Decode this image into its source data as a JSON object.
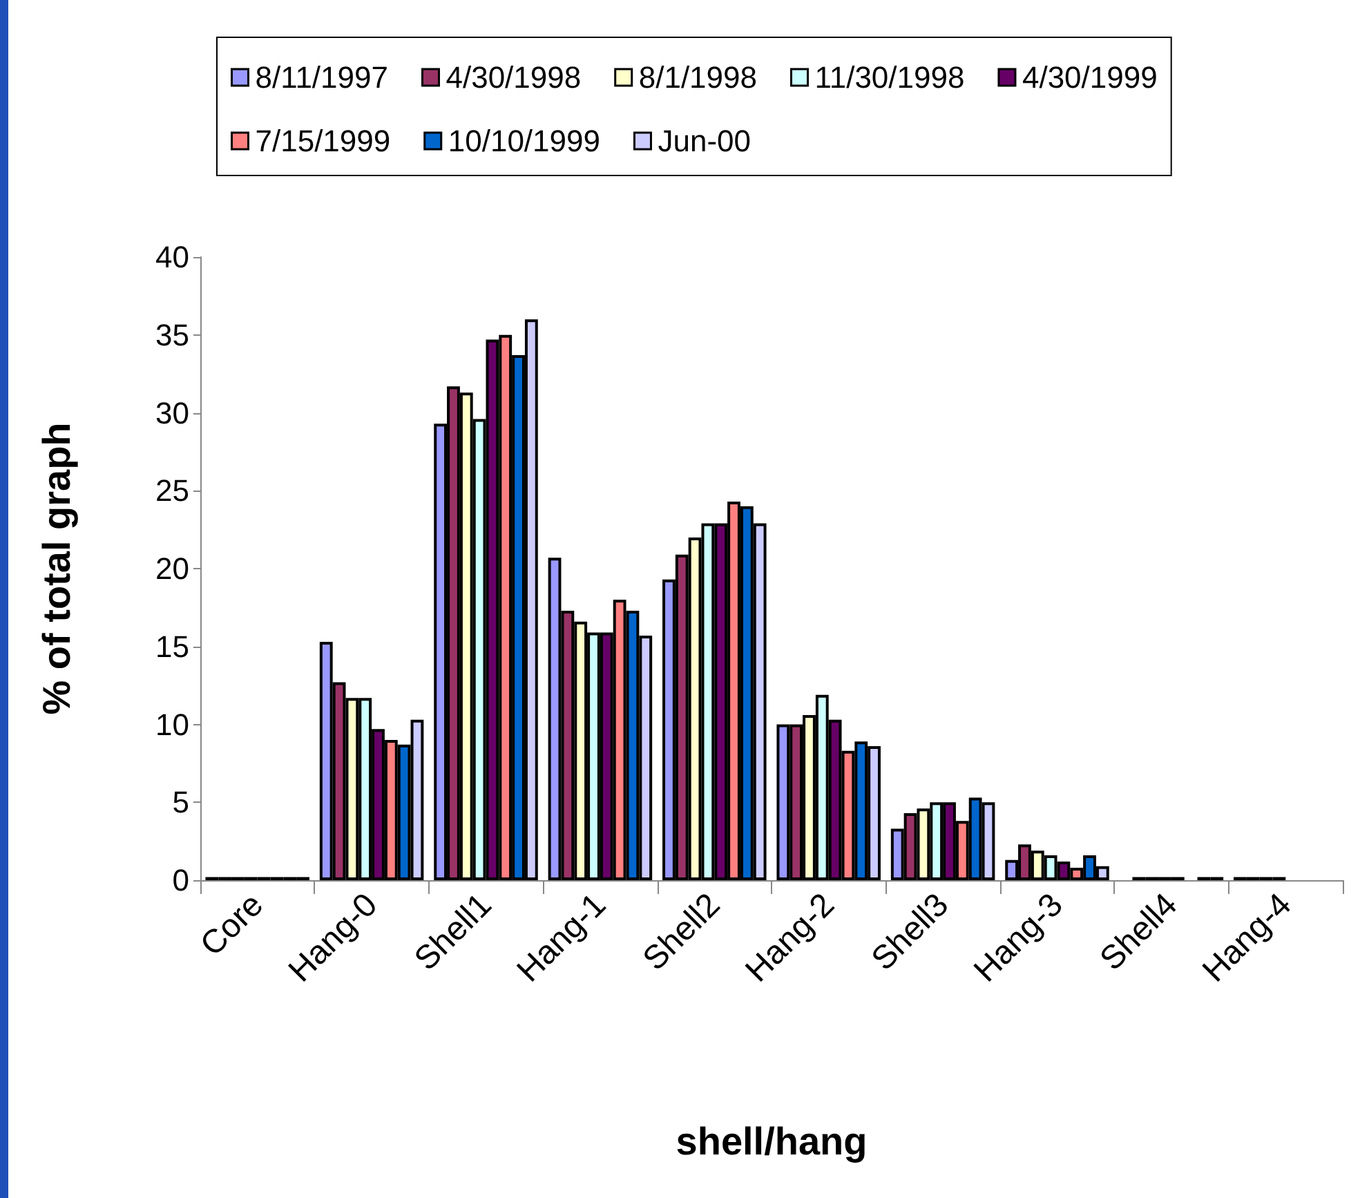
{
  "chart_data": {
    "type": "bar",
    "xlabel": "shell/hang",
    "ylabel": "% of total graph",
    "categories": [
      "Core",
      "Hang-0",
      "Shell1",
      "Hang-1",
      "Shell2",
      "Hang-2",
      "Shell3",
      "Hang-3",
      "Shell4",
      "Hang-4"
    ],
    "series": [
      {
        "name": "8/11/1997",
        "color": "#9999ff",
        "values": [
          0.2,
          15.3,
          29.3,
          20.7,
          19.3,
          10.0,
          3.3,
          1.3,
          null,
          0.2
        ]
      },
      {
        "name": "4/30/1998",
        "color": "#993366",
        "values": [
          0.2,
          12.7,
          31.7,
          17.3,
          20.9,
          10.0,
          4.3,
          2.3,
          0.2,
          0.2
        ]
      },
      {
        "name": "8/1/1998",
        "color": "#ffffcc",
        "values": [
          0.2,
          11.7,
          31.3,
          16.6,
          22.0,
          10.6,
          4.6,
          1.9,
          0.2,
          0.2
        ]
      },
      {
        "name": "11/30/1998",
        "color": "#ccffff",
        "values": [
          0.2,
          11.7,
          29.6,
          15.9,
          22.9,
          11.9,
          5.0,
          1.6,
          0.2,
          0.2
        ]
      },
      {
        "name": "4/30/1999",
        "color": "#660066",
        "values": [
          0.2,
          9.7,
          34.7,
          15.9,
          22.9,
          10.3,
          5.0,
          1.2,
          0.2,
          null
        ]
      },
      {
        "name": "7/15/1999",
        "color": "#ff8080",
        "values": [
          0.2,
          9.0,
          35.0,
          18.0,
          24.3,
          8.3,
          3.8,
          0.8,
          null,
          null
        ]
      },
      {
        "name": "10/10/1999",
        "color": "#0066cc",
        "values": [
          0.2,
          8.7,
          33.7,
          17.3,
          24.0,
          8.9,
          5.3,
          1.6,
          0.2,
          null
        ]
      },
      {
        "name": "Jun-00",
        "color": "#ccccff",
        "values": [
          0.2,
          10.3,
          36.0,
          15.7,
          22.9,
          8.6,
          5.0,
          0.9,
          0.2,
          null
        ]
      }
    ],
    "ylim": [
      0,
      40
    ],
    "yticks": [
      0,
      5,
      10,
      15,
      20,
      25,
      30,
      35,
      40
    ],
    "grid": false,
    "legend": "top"
  }
}
